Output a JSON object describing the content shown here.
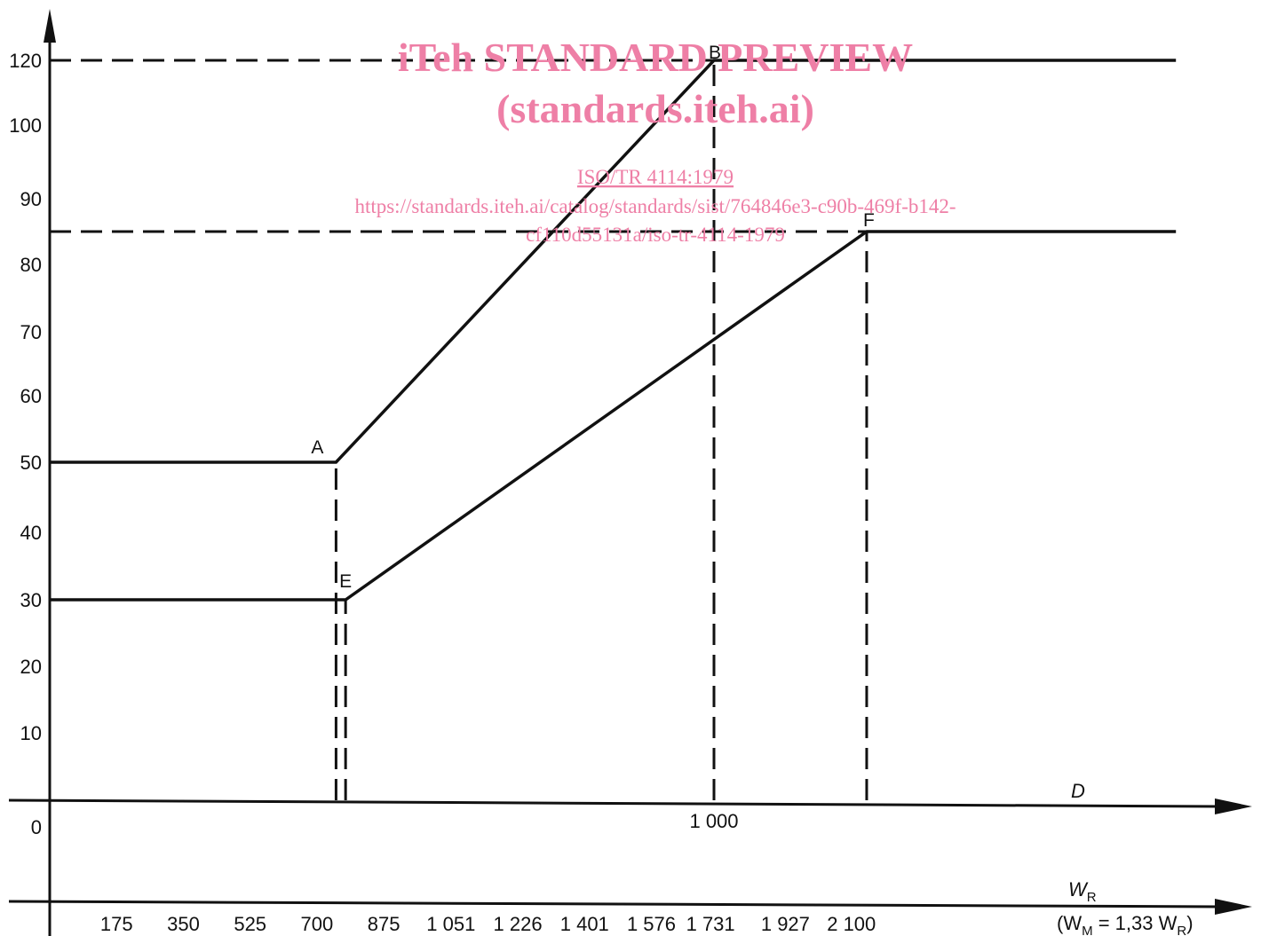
{
  "watermark": {
    "line1": "iTeh STANDARD PREVIEW",
    "line2": "(standards.iteh.ai)",
    "line3": "ISO/TR 4114:1979",
    "line4": "https://standards.iteh.ai/catalog/standards/sist/764846e3-c90b-469f-b142-",
    "line5": "cf110d55131a/iso-tr-4114-1979"
  },
  "chart_data": {
    "type": "line",
    "title": "",
    "y_ticks": [
      "0",
      "10",
      "20",
      "30",
      "40",
      "50",
      "60",
      "70",
      "80",
      "90",
      "100",
      "120"
    ],
    "y_tick_values": [
      0,
      10,
      20,
      30,
      40,
      50,
      60,
      70,
      80,
      90,
      100,
      120
    ],
    "x_label_D": "D",
    "x_ticks_D": [
      "1 000"
    ],
    "x_label_WR": "W",
    "x_label_WR_sub": "R",
    "x_label_WM_open": "(W",
    "x_label_WM_sub1": "M",
    "x_label_WM_mid": " = 1,33 W",
    "x_label_WM_sub2": "R",
    "x_label_WM_close": ")",
    "x_ticks_WR": [
      "175",
      "350",
      "525",
      "700",
      "875",
      "1 051",
      "1 226",
      "1 401",
      "1 576",
      "1 731",
      "1 927",
      "2 100"
    ],
    "x_tick_values_WR": [
      175,
      350,
      525,
      700,
      875,
      1051,
      1226,
      1401,
      1576,
      1731,
      1927,
      2100
    ],
    "series": [
      {
        "points": [
          {
            "x": 0,
            "y": 50
          },
          {
            "x": 750,
            "y": 50,
            "label": "A"
          },
          {
            "x": 1740,
            "y": 120,
            "label": "B"
          },
          {
            "x": 2950,
            "y": 120
          }
        ]
      },
      {
        "points": [
          {
            "x": 0,
            "y": 30
          },
          {
            "x": 775,
            "y": 30,
            "label": "E"
          },
          {
            "x": 2140,
            "y": 85,
            "label": "F"
          },
          {
            "x": 2950,
            "y": 85
          }
        ]
      }
    ],
    "reference_lines": [
      {
        "from": {
          "x": 0,
          "y": 120
        },
        "to": {
          "x": 1740,
          "y": 120
        }
      },
      {
        "from": {
          "x": 0,
          "y": 85
        },
        "to": {
          "x": 2140,
          "y": 85
        }
      },
      {
        "from": {
          "x": 750,
          "y": 0
        },
        "to": {
          "x": 750,
          "y": 50
        }
      },
      {
        "from": {
          "x": 775,
          "y": 0
        },
        "to": {
          "x": 775,
          "y": 30
        }
      },
      {
        "from": {
          "x": 1740,
          "y": 0
        },
        "to": {
          "x": 1740,
          "y": 120
        }
      },
      {
        "from": {
          "x": 2140,
          "y": 0
        },
        "to": {
          "x": 2140,
          "y": 85
        }
      }
    ],
    "grid": false,
    "legend": "none"
  }
}
